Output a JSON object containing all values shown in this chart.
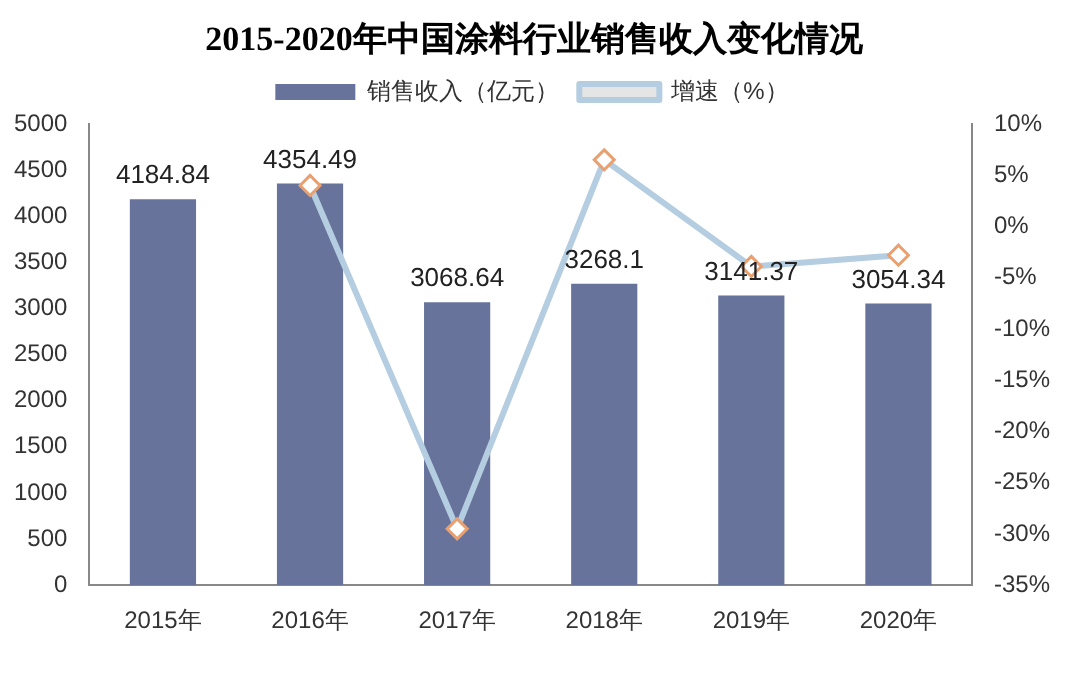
{
  "chart_data": {
    "type": "bar",
    "title": "2015-2020年中国涂料行业销售收入变化情况",
    "categories": [
      "2015年",
      "2016年",
      "2017年",
      "2018年",
      "2019年",
      "2020年"
    ],
    "series": [
      {
        "name": "销售收入（亿元）",
        "color": "#67739a",
        "values": [
          4184.84,
          4354.49,
          3068.64,
          3268.1,
          3141.37,
          3054.34
        ],
        "value_labels": [
          "4184.84",
          "4354.49",
          "3068.64",
          "3268.1",
          "3141.37",
          "3054.34"
        ]
      },
      {
        "name": "增速（%）",
        "type": "line",
        "axis": "y2",
        "color": "#b4cde0",
        "marker": "diamond",
        "values": [
          null,
          4,
          -29.5,
          6.5,
          -3.9,
          -2.8
        ]
      }
    ],
    "ylim": [
      0,
      5000
    ],
    "yticks": [
      0,
      500,
      1000,
      1500,
      2000,
      2500,
      3000,
      3500,
      4000,
      4500,
      5000
    ],
    "y2lim": [
      -35,
      10
    ],
    "y2ticks": [
      {
        "value": -35,
        "label": "-35%"
      },
      {
        "value": -30,
        "label": "-30%"
      },
      {
        "value": -25,
        "label": "-25%"
      },
      {
        "value": -20,
        "label": "-20%"
      },
      {
        "value": -15,
        "label": "-15%"
      },
      {
        "value": -10,
        "label": "-10%"
      },
      {
        "value": -5,
        "label": "-5%"
      },
      {
        "value": 0,
        "label": "0%"
      },
      {
        "value": 5,
        "label": "5%"
      },
      {
        "value": 10,
        "label": "10%"
      }
    ],
    "grid": false,
    "legend": "top"
  }
}
